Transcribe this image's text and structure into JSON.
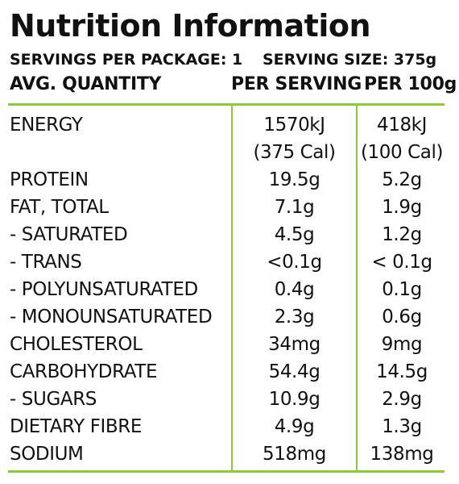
{
  "panel": {
    "title": "Nutrition Information",
    "servings_per_package": "SERVINGS PER PACKAGE: 1",
    "serving_size": "SERVING SIZE: 375g",
    "accent_color": "#8dc63f"
  },
  "columns": {
    "quantity": "AVG. QUANTITY",
    "per_serving": "PER SERVING",
    "per_100g": "PER 100g"
  },
  "rows": [
    {
      "name": "ENERGY",
      "per_serving": "1570kJ",
      "per_serving_sub": "(375 Cal)",
      "per_100g": "418kJ",
      "per_100g_sub": "(100 Cal)"
    },
    {
      "name": "PROTEIN",
      "per_serving": "19.5g",
      "per_100g": "5.2g"
    },
    {
      "name": "FAT, TOTAL",
      "per_serving": "7.1g",
      "per_100g": "1.9g"
    },
    {
      "name": "- SATURATED",
      "per_serving": "4.5g",
      "per_100g": "1.2g"
    },
    {
      "name": "- TRANS",
      "per_serving": "<0.1g",
      "per_100g": "< 0.1g"
    },
    {
      "name": "- POLYUNSATURATED",
      "per_serving": "0.4g",
      "per_100g": "0.1g"
    },
    {
      "name": "- MONOUNSATURATED",
      "per_serving": "2.3g",
      "per_100g": "0.6g"
    },
    {
      "name": "CHOLESTEROL",
      "per_serving": "34mg",
      "per_100g": "9mg"
    },
    {
      "name": "CARBOHYDRATE",
      "per_serving": "54.4g",
      "per_100g": "14.5g"
    },
    {
      "name": "- SUGARS",
      "per_serving": "10.9g",
      "per_100g": "2.9g"
    },
    {
      "name": "DIETARY FIBRE",
      "per_serving": "4.9g",
      "per_100g": "1.3g"
    },
    {
      "name": "SODIUM",
      "per_serving": "518mg",
      "per_100g": "138mg"
    }
  ]
}
